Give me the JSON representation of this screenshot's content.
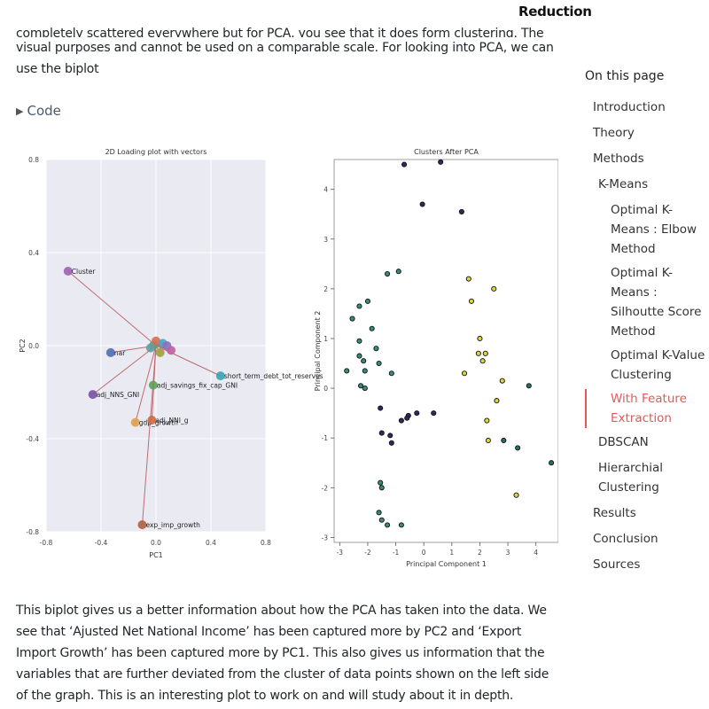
{
  "header": {
    "title": "Reduction"
  },
  "article": {
    "top_line_cut": "completely scattered everywhere but for PCA, you see that it does form clustering. The above is just for",
    "top_line_2": "visual purposes and cannot be used on a comparable scale. For looking into PCA, we can use the biplot",
    "code_toggle_label": "Code",
    "bottom_paragraph": "This biplot gives us a better information about how the PCA has taken into the data. We see that ‘Ajusted Net National Income’ has been captured more by PC2 and ‘Export Import Growth’ has been captured more by PC1. This also gives us information that the variables that are further deviated from the cluster of data points shown on the left side of the graph. This is an interesting plot to work on and will study about it in depth."
  },
  "toc": {
    "title": "On this page",
    "items": [
      {
        "label": "Introduction",
        "level": 1
      },
      {
        "label": "Theory",
        "level": 1
      },
      {
        "label": "Methods",
        "level": 1
      },
      {
        "label": "K-Means",
        "level": 2
      },
      {
        "label": "Optimal K-Means : Elbow Method",
        "level": 3
      },
      {
        "label": "Optimal K-Means : Silhoutte Score Method",
        "level": 3
      },
      {
        "label": "Optimal K-Value Clustering",
        "level": 3
      },
      {
        "label": "With Feature Extraction",
        "level": 3,
        "active": true
      },
      {
        "label": "DBSCAN",
        "level": 2
      },
      {
        "label": "Hierarchial Clustering",
        "level": 2
      },
      {
        "label": "Results",
        "level": 1
      },
      {
        "label": "Conclusion",
        "level": 1
      },
      {
        "label": "Sources",
        "level": 1
      }
    ]
  },
  "colors": {
    "accent": "#e05a5a",
    "plot_bg": "#eaeaf2",
    "vector": "#c06a72"
  },
  "chart_data": [
    {
      "type": "scatter",
      "title": "2D Loading plot with vectors",
      "xlabel": "PC1",
      "ylabel": "PC2",
      "xlim": [
        -0.8,
        0.8
      ],
      "ylim": [
        -0.8,
        0.8
      ],
      "xticks": [
        "-0.8",
        "-0.4",
        "0.0",
        "0.4",
        "0.8"
      ],
      "yticks": [
        "0.8",
        "0.4",
        "0.0",
        "-0.4",
        "-0.8"
      ],
      "grid": true,
      "vectors": [
        {
          "label": "Cluster",
          "x": -0.64,
          "y": 0.32,
          "color": "#a35fb5"
        },
        {
          "label": "nar",
          "x": -0.33,
          "y": -0.03,
          "color": "#4f6fb3"
        },
        {
          "label": "adj_NNS_GNI",
          "x": -0.46,
          "y": -0.21,
          "color": "#7a4fa5"
        },
        {
          "label": "gdp_growth",
          "x": -0.15,
          "y": -0.33,
          "color": "#e0a050"
        },
        {
          "label": "adj_NNI_g",
          "x": -0.03,
          "y": -0.32,
          "color": "#d06a40"
        },
        {
          "label": "adj_savings_fix_cap_GNI",
          "x": -0.02,
          "y": -0.17,
          "color": "#5ea05a"
        },
        {
          "label": "short_term_debt_tot_reserves",
          "x": 0.47,
          "y": -0.13,
          "color": "#3aa3b0"
        },
        {
          "label": "exp_imp_growth",
          "x": -0.1,
          "y": -0.77,
          "color": "#b06040"
        },
        {
          "label": "",
          "x": -0.02,
          "y": 0.0,
          "color": "#5aa070"
        },
        {
          "label": "",
          "x": 0.0,
          "y": 0.02,
          "color": "#d07050"
        },
        {
          "label": "",
          "x": 0.05,
          "y": 0.01,
          "color": "#4fa0c0"
        },
        {
          "label": "",
          "x": 0.08,
          "y": 0.0,
          "color": "#8a6fc0"
        },
        {
          "label": "",
          "x": 0.11,
          "y": -0.02,
          "color": "#c060a0"
        },
        {
          "label": "",
          "x": 0.03,
          "y": -0.03,
          "color": "#a0a040"
        },
        {
          "label": "",
          "x": -0.04,
          "y": -0.01,
          "color": "#60a0a0"
        }
      ]
    },
    {
      "type": "scatter",
      "title": "Clusters After PCA",
      "xlabel": "Principal Component 1",
      "ylabel": "Principal Component 2",
      "xlim": [
        -3.2,
        4.8
      ],
      "ylim": [
        -3.1,
        4.6
      ],
      "xticks": [
        "-3",
        "-2",
        "-1",
        "0",
        "1",
        "2",
        "3",
        "4"
      ],
      "yticks": [
        "4",
        "3",
        "2",
        "1",
        "0",
        "-1",
        "-2",
        "-3"
      ],
      "grid": false,
      "series": [
        {
          "color": "#2f2a5e",
          "points": [
            [
              -0.7,
              4.5
            ],
            [
              0.6,
              4.55
            ],
            [
              -0.05,
              3.7
            ],
            [
              1.35,
              3.55
            ],
            [
              -1.55,
              -0.4
            ],
            [
              -1.5,
              -0.9
            ],
            [
              -1.2,
              -0.95
            ],
            [
              -1.15,
              -1.1
            ],
            [
              -0.8,
              -0.65
            ],
            [
              -0.55,
              -0.55
            ],
            [
              -0.6,
              -0.6
            ],
            [
              -0.25,
              -0.5
            ],
            [
              0.35,
              -0.5
            ]
          ]
        },
        {
          "color": "#3b8a7a",
          "points": [
            [
              -1.3,
              2.3
            ],
            [
              -0.9,
              2.35
            ],
            [
              -2.0,
              1.75
            ],
            [
              -2.3,
              1.65
            ],
            [
              -2.55,
              1.4
            ],
            [
              -2.3,
              0.95
            ],
            [
              -2.3,
              0.65
            ],
            [
              -2.15,
              0.55
            ],
            [
              -2.1,
              0.35
            ],
            [
              -2.25,
              0.05
            ],
            [
              -2.1,
              0.0
            ],
            [
              -2.75,
              0.35
            ],
            [
              -1.6,
              0.5
            ],
            [
              -1.15,
              0.3
            ],
            [
              -1.55,
              -1.9
            ],
            [
              -1.5,
              -2.0
            ],
            [
              -1.6,
              -2.5
            ],
            [
              -1.5,
              -2.65
            ],
            [
              -1.3,
              -2.75
            ],
            [
              -0.8,
              -2.75
            ],
            [
              -1.7,
              0.8
            ],
            [
              -1.85,
              1.2
            ]
          ]
        },
        {
          "color": "#d9d73a",
          "points": [
            [
              1.6,
              2.2
            ],
            [
              1.7,
              1.75
            ],
            [
              2.5,
              2.0
            ],
            [
              2.0,
              1.0
            ],
            [
              1.95,
              0.7
            ],
            [
              2.2,
              0.7
            ],
            [
              1.45,
              0.3
            ],
            [
              2.1,
              0.55
            ],
            [
              2.8,
              0.15
            ],
            [
              2.6,
              -0.25
            ],
            [
              2.25,
              -0.65
            ],
            [
              2.3,
              -1.05
            ],
            [
              3.3,
              -2.15
            ]
          ]
        },
        {
          "color": "#2a6e6a",
          "points": [
            [
              3.75,
              0.05
            ],
            [
              2.85,
              -1.05
            ],
            [
              3.35,
              -1.2
            ],
            [
              4.55,
              -1.5
            ]
          ]
        }
      ]
    }
  ]
}
